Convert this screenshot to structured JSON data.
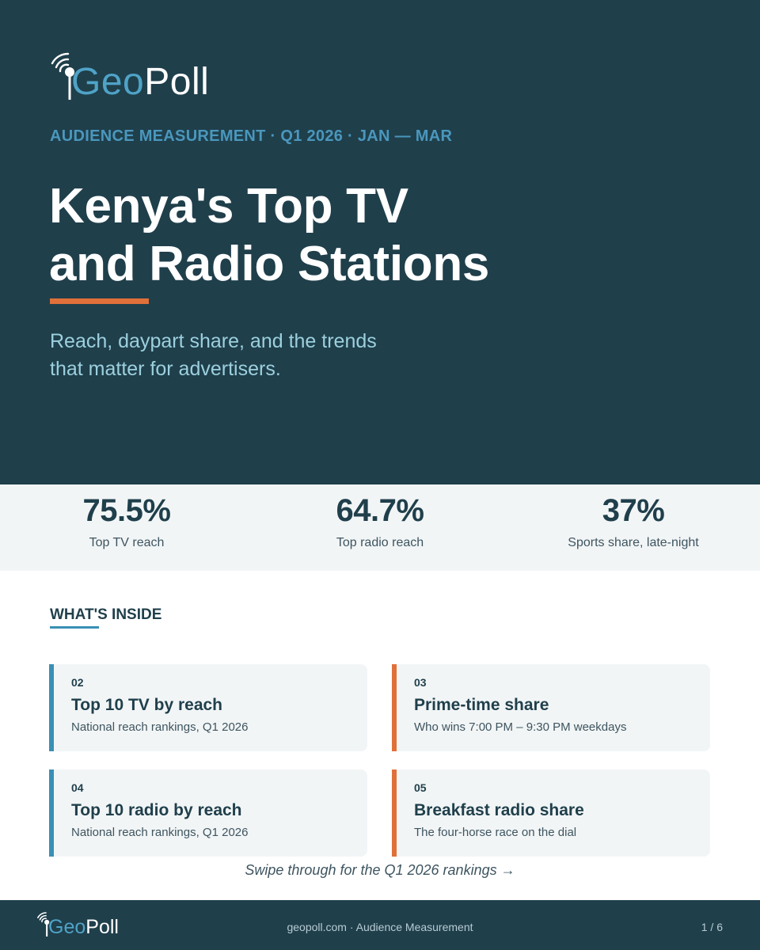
{
  "brand": {
    "logo_geo": "Geo",
    "logo_poll": "Poll",
    "accent_blue": "#4fa3c7",
    "accent_orange": "#e0703a",
    "navy": "#1f3f4b"
  },
  "hero": {
    "eyebrow": "AUDIENCE MEASUREMENT · Q1 2026 · JAN — MAR",
    "title_line1": "Kenya's Top TV",
    "title_line2": "and Radio Stations",
    "subtitle_line1": "Reach, daypart share, and the trends",
    "subtitle_line2": "that matter for advertisers."
  },
  "stats": [
    {
      "value": "75.5%",
      "label": "Top TV reach"
    },
    {
      "value": "64.7%",
      "label": "Top radio reach"
    },
    {
      "value": "37%",
      "label": "Sports share, late-night"
    }
  ],
  "inside": {
    "heading": "WHAT'S INSIDE",
    "cards": [
      {
        "num": "02",
        "title": "Top 10 TV by reach",
        "desc": "National reach rankings, Q1 2026",
        "accent": "#3a8fb5"
      },
      {
        "num": "03",
        "title": "Prime-time share",
        "desc": "Who wins 7:00 PM – 9:30 PM weekdays",
        "accent": "#e0703a"
      },
      {
        "num": "04",
        "title": "Top 10 radio by reach",
        "desc": "National reach rankings, Q1 2026",
        "accent": "#3a8fb5"
      },
      {
        "num": "05",
        "title": "Breakfast radio share",
        "desc": "The four-horse race on the dial",
        "accent": "#e0703a"
      }
    ]
  },
  "swipe": "Swipe through for the Q1 2026 rankings →",
  "footer": {
    "center": "geopoll.com  ·  Audience Measurement",
    "page": "1 / 6"
  }
}
